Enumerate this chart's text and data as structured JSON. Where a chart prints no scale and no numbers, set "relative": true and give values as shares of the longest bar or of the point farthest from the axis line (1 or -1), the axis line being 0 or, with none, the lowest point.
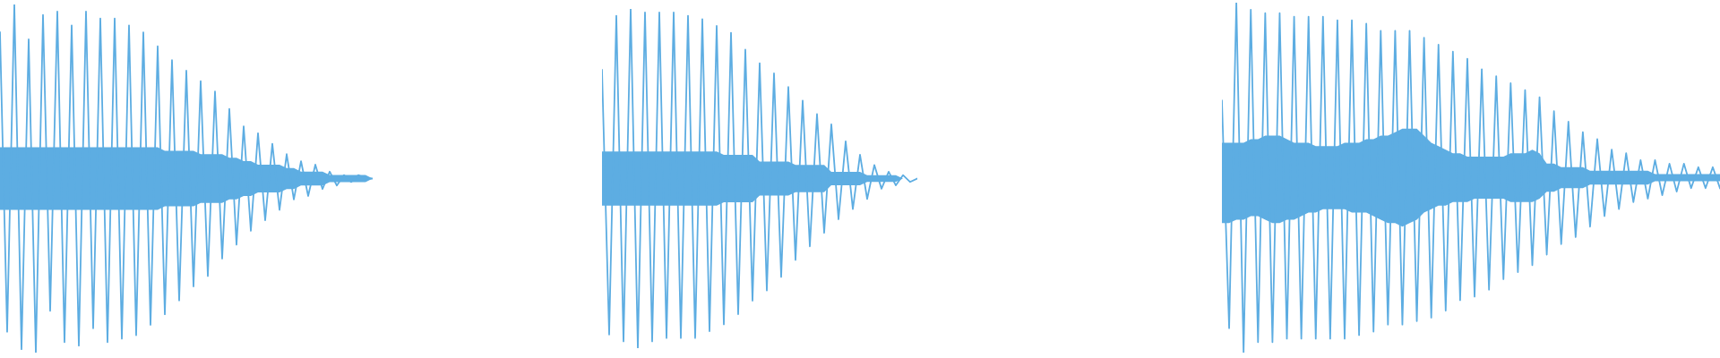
{
  "chart_data": [
    {
      "type": "line",
      "relative": true,
      "tick_labels": false,
      "categories": [
        null,
        null,
        null,
        null,
        null,
        null,
        null,
        null,
        null,
        null,
        null,
        null,
        null,
        null,
        null,
        null,
        null,
        null,
        null,
        null,
        null,
        null,
        null,
        null,
        null,
        null,
        null,
        null,
        null,
        null,
        null,
        null,
        null,
        null,
        null,
        null,
        null,
        null,
        null,
        null,
        null,
        null,
        null,
        null,
        null,
        null,
        null,
        null,
        null,
        null,
        null,
        null,
        null
      ],
      "series": [
        {
          "color": "#5dade2",
          "values": [
            0.92,
            0.06,
            1.0,
            0.01,
            0.9,
            0.0,
            0.97,
            0.12,
            0.98,
            0.03,
            0.94,
            0.02,
            0.98,
            0.07,
            0.96,
            0.03,
            0.96,
            0.04,
            0.94,
            0.05,
            0.92,
            0.08,
            0.88,
            0.11,
            0.84,
            0.15,
            0.81,
            0.19,
            0.78,
            0.22,
            0.75,
            0.27,
            0.7,
            0.31,
            0.65,
            0.35,
            0.63,
            0.38,
            0.6,
            0.41,
            0.57,
            0.44,
            0.55,
            0.45,
            0.54,
            0.47,
            0.52,
            0.48,
            0.51,
            0.49,
            0.51,
            0.5,
            0.5
          ],
          "upper": [
            0.59,
            0.59,
            0.59,
            0.59,
            0.59,
            0.59,
            0.59,
            0.59,
            0.59,
            0.59,
            0.59,
            0.59,
            0.59,
            0.59,
            0.59,
            0.59,
            0.59,
            0.59,
            0.59,
            0.59,
            0.59,
            0.59,
            0.59,
            0.58,
            0.58,
            0.58,
            0.58,
            0.58,
            0.57,
            0.57,
            0.57,
            0.57,
            0.56,
            0.56,
            0.55,
            0.55,
            0.54,
            0.54,
            0.54,
            0.54,
            0.53,
            0.53,
            0.52,
            0.52,
            0.52,
            0.52,
            0.51,
            0.51,
            0.51,
            0.51,
            0.51,
            0.51,
            0.5
          ],
          "lower": [
            0.41,
            0.41,
            0.41,
            0.41,
            0.41,
            0.41,
            0.41,
            0.41,
            0.41,
            0.41,
            0.41,
            0.41,
            0.41,
            0.41,
            0.41,
            0.41,
            0.41,
            0.41,
            0.41,
            0.41,
            0.41,
            0.41,
            0.41,
            0.42,
            0.42,
            0.42,
            0.42,
            0.42,
            0.43,
            0.43,
            0.43,
            0.43,
            0.44,
            0.44,
            0.45,
            0.45,
            0.46,
            0.46,
            0.46,
            0.46,
            0.47,
            0.47,
            0.48,
            0.48,
            0.48,
            0.48,
            0.49,
            0.49,
            0.49,
            0.49,
            0.49,
            0.49,
            0.5
          ]
        }
      ]
    },
    {
      "type": "line",
      "relative": true,
      "tick_labels": false,
      "categories": [
        null,
        null,
        null,
        null,
        null,
        null,
        null,
        null,
        null,
        null,
        null,
        null,
        null,
        null,
        null,
        null,
        null,
        null,
        null,
        null,
        null,
        null,
        null,
        null,
        null,
        null,
        null,
        null,
        null,
        null,
        null,
        null,
        null,
        null,
        null,
        null,
        null,
        null,
        null,
        null,
        null,
        null,
        null,
        null,
        null
      ],
      "series": [
        {
          "color": "#5dade2",
          "values": [
            0.82,
            0.04,
            0.98,
            0.02,
            1.0,
            0.0,
            0.99,
            0.02,
            0.99,
            0.03,
            0.99,
            0.03,
            0.98,
            0.03,
            0.97,
            0.05,
            0.95,
            0.07,
            0.93,
            0.1,
            0.88,
            0.14,
            0.84,
            0.17,
            0.81,
            0.21,
            0.77,
            0.26,
            0.73,
            0.3,
            0.69,
            0.34,
            0.66,
            0.38,
            0.61,
            0.41,
            0.57,
            0.44,
            0.54,
            0.47,
            0.52,
            0.48,
            0.51,
            0.49,
            0.5
          ],
          "upper": [
            0.58,
            0.58,
            0.58,
            0.58,
            0.58,
            0.58,
            0.58,
            0.58,
            0.58,
            0.58,
            0.58,
            0.58,
            0.58,
            0.58,
            0.58,
            0.58,
            0.58,
            0.57,
            0.57,
            0.57,
            0.57,
            0.57,
            0.55,
            0.55,
            0.55,
            0.55,
            0.55,
            0.54,
            0.54,
            0.54,
            0.54,
            0.54,
            0.52,
            0.52,
            0.52,
            0.52,
            0.52,
            0.51,
            0.51,
            0.51,
            0.51,
            0.51,
            0.5,
            0.5,
            0.5
          ],
          "lower": [
            0.42,
            0.42,
            0.42,
            0.42,
            0.42,
            0.42,
            0.42,
            0.42,
            0.42,
            0.42,
            0.42,
            0.42,
            0.42,
            0.42,
            0.42,
            0.42,
            0.42,
            0.43,
            0.43,
            0.43,
            0.43,
            0.43,
            0.45,
            0.45,
            0.45,
            0.45,
            0.45,
            0.46,
            0.46,
            0.46,
            0.46,
            0.46,
            0.48,
            0.48,
            0.48,
            0.48,
            0.48,
            0.49,
            0.49,
            0.49,
            0.49,
            0.49,
            0.5,
            0.5,
            0.5
          ]
        }
      ]
    },
    {
      "type": "line",
      "relative": true,
      "tick_labels": false,
      "categories": [
        null,
        null,
        null,
        null,
        null,
        null,
        null,
        null,
        null,
        null,
        null,
        null,
        null,
        null,
        null,
        null,
        null,
        null,
        null,
        null,
        null,
        null,
        null,
        null,
        null,
        null,
        null,
        null,
        null,
        null,
        null,
        null,
        null,
        null,
        null,
        null,
        null,
        null,
        null,
        null,
        null,
        null,
        null,
        null,
        null,
        null,
        null,
        null,
        null,
        null,
        null,
        null,
        null,
        null,
        null,
        null,
        null,
        null,
        null,
        null,
        null,
        null,
        null,
        null,
        null,
        null,
        null,
        null,
        null,
        null
      ],
      "series": [
        {
          "color": "#5dade2",
          "values": [
            0.72,
            0.07,
            1.0,
            0.0,
            0.98,
            0.03,
            0.97,
            0.03,
            0.97,
            0.04,
            0.96,
            0.04,
            0.96,
            0.04,
            0.96,
            0.04,
            0.95,
            0.04,
            0.95,
            0.05,
            0.94,
            0.06,
            0.92,
            0.08,
            0.92,
            0.08,
            0.92,
            0.09,
            0.9,
            0.1,
            0.88,
            0.12,
            0.86,
            0.15,
            0.84,
            0.16,
            0.81,
            0.18,
            0.79,
            0.21,
            0.77,
            0.23,
            0.75,
            0.25,
            0.73,
            0.28,
            0.69,
            0.31,
            0.66,
            0.33,
            0.63,
            0.36,
            0.61,
            0.39,
            0.58,
            0.41,
            0.57,
            0.43,
            0.55,
            0.44,
            0.55,
            0.45,
            0.54,
            0.46,
            0.54,
            0.47,
            0.53,
            0.47,
            0.53,
            0.47
          ],
          "upper": [
            0.6,
            0.6,
            0.6,
            0.6,
            0.61,
            0.61,
            0.62,
            0.62,
            0.62,
            0.61,
            0.6,
            0.6,
            0.6,
            0.59,
            0.59,
            0.59,
            0.59,
            0.6,
            0.6,
            0.6,
            0.61,
            0.61,
            0.62,
            0.62,
            0.63,
            0.64,
            0.64,
            0.64,
            0.62,
            0.6,
            0.59,
            0.58,
            0.57,
            0.57,
            0.56,
            0.56,
            0.56,
            0.56,
            0.56,
            0.56,
            0.57,
            0.57,
            0.57,
            0.58,
            0.57,
            0.54,
            0.54,
            0.53,
            0.53,
            0.53,
            0.53,
            0.52,
            0.52,
            0.52,
            0.52,
            0.52,
            0.52,
            0.52,
            0.52,
            0.52,
            0.51,
            0.51,
            0.51,
            0.51,
            0.51,
            0.51,
            0.51,
            0.51,
            0.51,
            0.51
          ],
          "lower": [
            0.37,
            0.37,
            0.38,
            0.38,
            0.39,
            0.39,
            0.38,
            0.37,
            0.37,
            0.38,
            0.38,
            0.39,
            0.4,
            0.4,
            0.41,
            0.41,
            0.41,
            0.41,
            0.4,
            0.4,
            0.4,
            0.39,
            0.38,
            0.37,
            0.37,
            0.36,
            0.37,
            0.38,
            0.4,
            0.41,
            0.42,
            0.42,
            0.43,
            0.43,
            0.43,
            0.44,
            0.44,
            0.44,
            0.44,
            0.44,
            0.43,
            0.43,
            0.43,
            0.43,
            0.44,
            0.46,
            0.46,
            0.47,
            0.47,
            0.47,
            0.47,
            0.48,
            0.48,
            0.48,
            0.48,
            0.48,
            0.48,
            0.48,
            0.48,
            0.48,
            0.49,
            0.49,
            0.49,
            0.49,
            0.49,
            0.49,
            0.49,
            0.49,
            0.49,
            0.49
          ]
        }
      ]
    }
  ]
}
